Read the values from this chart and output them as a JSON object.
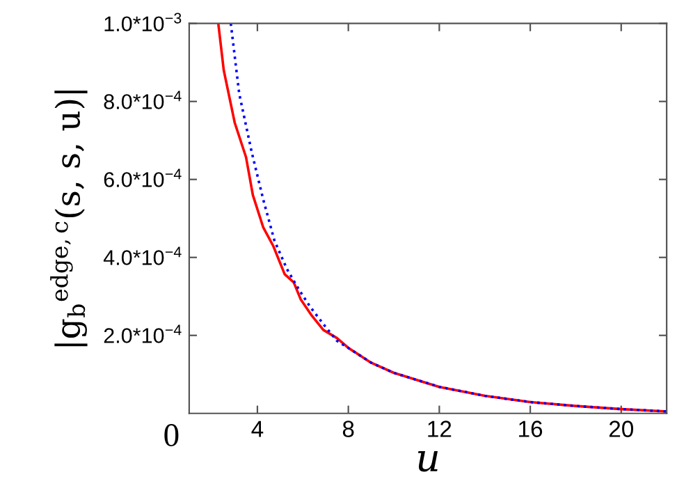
{
  "chart_data": {
    "type": "line",
    "xlabel": "u",
    "ylabel": "|g$_{b}$$^{edge,c}$(s, s, u)|",
    "xlim": [
      1,
      22
    ],
    "ylim": [
      0,
      0.001
    ],
    "xticks": [
      4,
      8,
      12,
      16,
      20
    ],
    "yticks": [
      {
        "value": 0.0002,
        "label": "2.0*10$^{−4}$"
      },
      {
        "value": 0.0004,
        "label": "4.0*10$^{−4}$"
      },
      {
        "value": 0.0006,
        "label": "6.0*10$^{−4}$"
      },
      {
        "value": 0.0008,
        "label": "8.0*10$^{−4}$"
      },
      {
        "value": 0.001,
        "label": "1.0*10$^{−3}$"
      }
    ],
    "grid": false,
    "legend": false,
    "marker": "none",
    "annotations": [
      "0"
    ],
    "series": [
      {
        "color": "#ff0000",
        "line_style": "solid",
        "x": [
          2.28,
          2.52,
          3.0,
          3.5,
          3.8,
          4.25,
          4.7,
          5.2,
          5.6,
          5.9,
          6.4,
          6.9,
          7.5,
          8,
          9,
          10,
          12,
          14,
          16,
          18,
          20,
          22
        ],
        "values": [
          0.001,
          0.00088,
          0.000746,
          0.000657,
          0.00056,
          0.000478,
          0.000429,
          0.000357,
          0.000336,
          0.000293,
          0.00025,
          0.000214,
          0.000193,
          0.000168,
          0.00013,
          0.000104,
          6.8e-05,
          4.5e-05,
          2.9e-05,
          1.9e-05,
          1.1e-05,
          5e-06
        ]
      },
      {
        "color": "#0000ff",
        "line_style": "dotted",
        "x": [
          2.83,
          3.2,
          3.75,
          4.25,
          4.75,
          5.3,
          5.8,
          6.3,
          6.9,
          7.5,
          8,
          9,
          10,
          12,
          14,
          16,
          18,
          20,
          22
        ],
        "values": [
          0.001,
          0.00082,
          0.00067,
          0.00055,
          0.000443,
          0.00037,
          0.00032,
          0.000275,
          0.000229,
          0.000186,
          0.000168,
          0.00013,
          0.000104,
          6.8e-05,
          4.5e-05,
          2.9e-05,
          1.9e-05,
          1.1e-05,
          5e-06
        ]
      }
    ]
  }
}
